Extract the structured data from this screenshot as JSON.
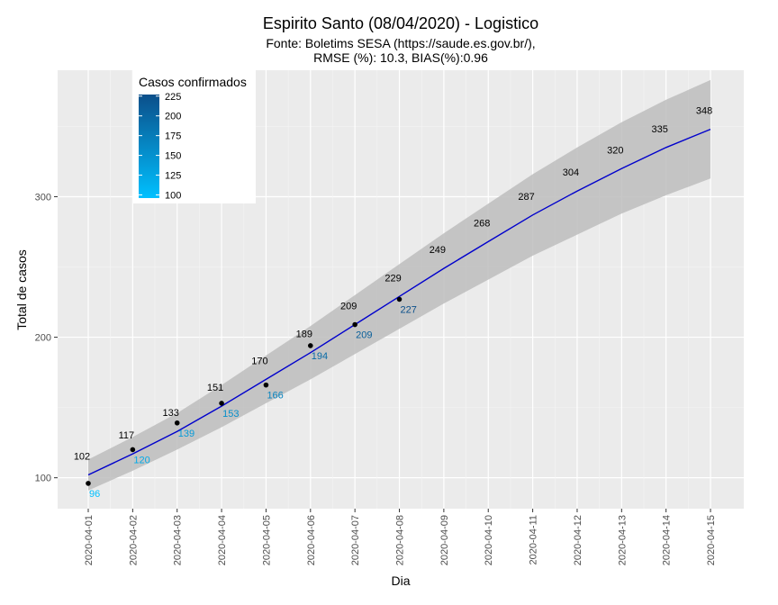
{
  "chart_data": {
    "type": "line",
    "title": "Espirito Santo (08/04/2020) - Logistico",
    "subtitle_lines": [
      "Fonte: Boletims SESA (https://saude.es.gov.br/),",
      "RMSE (%): 10.3, BIAS(%):0.96"
    ],
    "xlabel": "Dia",
    "ylabel": "Total de casos",
    "x": [
      "2020-04-01",
      "2020-04-02",
      "2020-04-03",
      "2020-04-04",
      "2020-04-05",
      "2020-04-06",
      "2020-04-07",
      "2020-04-08",
      "2020-04-09",
      "2020-04-10",
      "2020-04-11",
      "2020-04-12",
      "2020-04-13",
      "2020-04-14",
      "2020-04-15"
    ],
    "ylim": [
      78,
      390
    ],
    "yticks": [
      100,
      200,
      300
    ],
    "grid": true,
    "fit_line": {
      "color": "#0000cc",
      "values": [
        102,
        117,
        133,
        151,
        170,
        189,
        209,
        229,
        249,
        268,
        287,
        304,
        320,
        335,
        348
      ],
      "labels": [
        "102",
        "117",
        "133",
        "151",
        "170",
        "189",
        "209",
        "229",
        "249",
        "268",
        "287",
        "304",
        "320",
        "335",
        "348"
      ]
    },
    "confidence_band": {
      "color": "#bdbdbd",
      "lower": [
        91,
        105,
        120,
        136,
        153,
        170,
        188,
        206,
        224,
        241,
        258,
        273,
        288,
        301,
        313
      ],
      "upper": [
        113,
        129,
        146,
        166,
        187,
        208,
        230,
        252,
        274,
        295,
        316,
        335,
        353,
        369,
        383
      ]
    },
    "observed": {
      "x": [
        "2020-04-01",
        "2020-04-02",
        "2020-04-03",
        "2020-04-04",
        "2020-04-05",
        "2020-04-06",
        "2020-04-07",
        "2020-04-08"
      ],
      "values": [
        96,
        120,
        139,
        153,
        166,
        194,
        209,
        227
      ],
      "labels": [
        "96",
        "120",
        "139",
        "153",
        "166",
        "194",
        "209",
        "227"
      ]
    },
    "legend": {
      "title": "Casos confirmados",
      "position": "top-left",
      "ticks": [
        "225",
        "200",
        "175",
        "150",
        "125",
        "100"
      ],
      "range": [
        96,
        227
      ],
      "color_low": "#00c0ff",
      "color_high": "#0b4f8a"
    },
    "colors": {
      "panel_bg": "#ebebeb",
      "grid_major": "#ffffff",
      "grid_minor": "#f5f5f5",
      "point": "#000000"
    }
  }
}
